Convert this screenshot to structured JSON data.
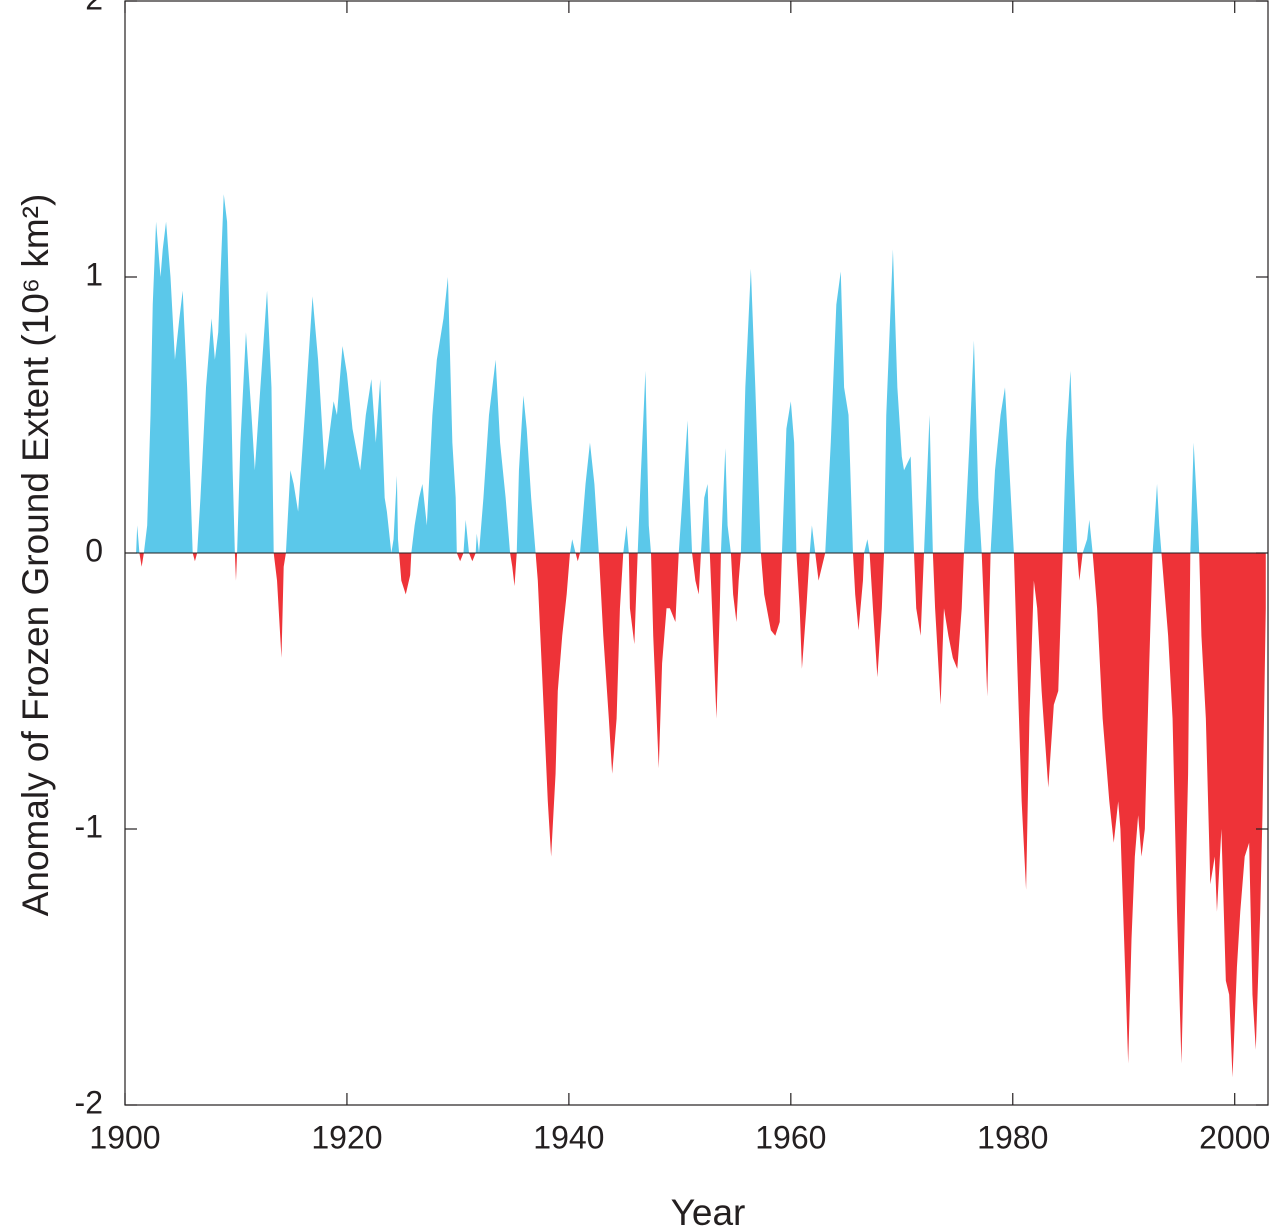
{
  "chart_data": {
    "type": "area",
    "x_label": "Year",
    "y_label": "Anomaly of Frozen Ground Extent (10⁶ km²)",
    "colors": {
      "positive": "#5bc8ea",
      "negative": "#ee3338"
    },
    "xlim": [
      1900,
      2003
    ],
    "xticks": [
      1900,
      1920,
      1940,
      1960,
      1980,
      2000
    ],
    "ylim": [
      -2,
      2
    ],
    "yticks": [
      -2,
      -1,
      0,
      1,
      2
    ],
    "x": [
      1901.0,
      1901.1,
      1901.3,
      1901.5,
      1901.7,
      1902.0,
      1902.3,
      1902.5,
      1902.8,
      1903.2,
      1903.4,
      1903.7,
      1904.1,
      1904.5,
      1904.9,
      1905.2,
      1905.6,
      1906.1,
      1906.3,
      1906.5,
      1906.8,
      1907.3,
      1907.8,
      1908.1,
      1908.4,
      1908.7,
      1908.9,
      1909.2,
      1909.5,
      1909.7,
      1909.9,
      1910.0,
      1910.1,
      1910.4,
      1910.9,
      1911.4,
      1911.7,
      1912.2,
      1912.8,
      1913.2,
      1913.4,
      1913.7,
      1914.1,
      1914.3,
      1914.5,
      1914.9,
      1915.2,
      1915.6,
      1916.2,
      1916.9,
      1917.4,
      1918.0,
      1918.8,
      1919.1,
      1919.6,
      1920.0,
      1920.5,
      1921.2,
      1921.7,
      1922.2,
      1922.6,
      1923.0,
      1923.4,
      1923.6,
      1924.0,
      1924.2,
      1924.5,
      1924.6,
      1924.7,
      1924.9,
      1925.3,
      1925.7,
      1925.8,
      1926.1,
      1926.5,
      1926.8,
      1927.2,
      1927.7,
      1928.1,
      1928.7,
      1929.1,
      1929.5,
      1929.8,
      1929.9,
      1930.2,
      1930.5,
      1930.7,
      1931.0,
      1931.3,
      1931.6,
      1931.7,
      1931.9,
      1932.3,
      1932.8,
      1933.4,
      1933.8,
      1934.3,
      1934.7,
      1934.9,
      1935.1,
      1935.3,
      1935.5,
      1935.9,
      1936.2,
      1936.6,
      1937.0,
      1937.2,
      1937.6,
      1938.1,
      1938.4,
      1938.8,
      1939.0,
      1939.4,
      1939.8,
      1940.1,
      1940.3,
      1940.6,
      1940.8,
      1941.0,
      1941.5,
      1941.9,
      1942.3,
      1942.7,
      1943.1,
      1943.6,
      1943.9,
      1944.3,
      1944.6,
      1944.9,
      1945.2,
      1945.4,
      1945.5,
      1945.9,
      1946.2,
      1946.5,
      1946.9,
      1947.2,
      1947.4,
      1947.6,
      1948.1,
      1948.4,
      1948.8,
      1949.1,
      1949.6,
      1949.9,
      1950.4,
      1950.7,
      1950.9,
      1951.1,
      1951.4,
      1951.7,
      1951.9,
      1952.2,
      1952.5,
      1952.7,
      1952.9,
      1953.3,
      1953.6,
      1953.7,
      1953.9,
      1954.1,
      1954.3,
      1954.6,
      1954.8,
      1955.1,
      1955.3,
      1955.5,
      1955.9,
      1956.4,
      1956.8,
      1957.3,
      1957.6,
      1958.2,
      1958.6,
      1959.0,
      1959.2,
      1959.6,
      1960.0,
      1960.3,
      1960.5,
      1960.8,
      1961.0,
      1961.4,
      1961.7,
      1961.9,
      1962.2,
      1962.5,
      1962.8,
      1963.1,
      1963.6,
      1964.1,
      1964.5,
      1964.8,
      1965.2,
      1965.6,
      1965.8,
      1966.1,
      1966.5,
      1966.6,
      1966.9,
      1967.1,
      1967.4,
      1967.8,
      1968.2,
      1968.4,
      1968.6,
      1969.2,
      1969.6,
      1970.0,
      1970.2,
      1970.8,
      1971.1,
      1971.3,
      1971.7,
      1972.0,
      1972.3,
      1972.5,
      1972.8,
      1973.0,
      1973.5,
      1973.8,
      1974.2,
      1974.6,
      1975.0,
      1975.4,
      1975.6,
      1976.1,
      1976.5,
      1976.7,
      1976.9,
      1977.2,
      1977.5,
      1977.7,
      1978.0,
      1978.4,
      1978.9,
      1979.3,
      1979.7,
      1980.1,
      1980.4,
      1980.8,
      1981.2,
      1981.5,
      1981.9,
      1982.2,
      1982.6,
      1983.2,
      1983.7,
      1984.1,
      1984.5,
      1984.8,
      1985.2,
      1985.5,
      1985.8,
      1986.0,
      1986.3,
      1986.7,
      1986.9,
      1987.2,
      1987.6,
      1988.1,
      1988.7,
      1989.1,
      1989.5,
      1989.7,
      1990.2,
      1990.4,
      1990.7,
      1991.0,
      1991.3,
      1991.6,
      1991.9,
      1992.3,
      1992.6,
      1993.0,
      1993.2,
      1993.4,
      1993.7,
      1994.0,
      1994.4,
      1994.8,
      1995.2,
      1995.4,
      1995.8,
      1996.0,
      1996.3,
      1996.7,
      1996.8,
      1997.0,
      1997.4,
      1997.8,
      1998.2,
      1998.4,
      1998.8,
      1999.2,
      1999.5,
      1999.8,
      2000.2,
      2000.5,
      2000.9,
      2001.3,
      2001.6,
      2001.9,
      2002.3,
      2002.5,
      2002.8
    ],
    "values": [
      0,
      0.1,
      0,
      -0.05,
      0,
      0.1,
      0.5,
      0.9,
      1.2,
      1.0,
      1.1,
      1.2,
      1.0,
      0.7,
      0.85,
      0.95,
      0.6,
      0,
      -0.03,
      0,
      0.2,
      0.6,
      0.85,
      0.7,
      0.8,
      1.1,
      1.3,
      1.2,
      0.7,
      0.3,
      0,
      -0.1,
      0,
      0.4,
      0.8,
      0.5,
      0.3,
      0.6,
      0.95,
      0.6,
      0,
      -0.1,
      -0.38,
      -0.05,
      0,
      0.3,
      0.25,
      0.15,
      0.5,
      0.93,
      0.7,
      0.3,
      0.55,
      0.5,
      0.75,
      0.65,
      0.45,
      0.3,
      0.5,
      0.63,
      0.4,
      0.63,
      0.2,
      0.15,
      0,
      0.05,
      0.28,
      0.05,
      0,
      -0.1,
      -0.15,
      -0.08,
      0,
      0.1,
      0.2,
      0.25,
      0.1,
      0.5,
      0.7,
      0.85,
      1.0,
      0.4,
      0.2,
      0,
      -0.03,
      0,
      0.12,
      0,
      -0.03,
      0,
      0.07,
      0,
      0.2,
      0.5,
      0.7,
      0.4,
      0.2,
      0,
      -0.05,
      -0.12,
      0,
      0.3,
      0.57,
      0.45,
      0.2,
      0,
      -0.1,
      -0.45,
      -0.9,
      -1.1,
      -0.8,
      -0.5,
      -0.3,
      -0.15,
      0,
      0.05,
      0,
      -0.03,
      0,
      0.25,
      0.4,
      0.25,
      0,
      -0.3,
      -0.6,
      -0.8,
      -0.6,
      -0.2,
      0,
      0.1,
      0,
      -0.2,
      -0.33,
      0,
      0.3,
      0.66,
      0.1,
      0,
      -0.3,
      -0.78,
      -0.4,
      -0.2,
      -0.2,
      -0.25,
      0,
      0.3,
      0.48,
      0.2,
      0,
      -0.1,
      -0.15,
      0,
      0.2,
      0.25,
      0,
      -0.2,
      -0.6,
      -0.2,
      0,
      0.2,
      0.38,
      0.1,
      0,
      -0.15,
      -0.25,
      -0.1,
      0,
      0.6,
      1.03,
      0.6,
      0,
      -0.15,
      -0.28,
      -0.3,
      -0.25,
      0,
      0.45,
      0.55,
      0.4,
      0,
      -0.2,
      -0.42,
      -0.2,
      0,
      0.1,
      0,
      -0.1,
      -0.05,
      0,
      0.4,
      0.9,
      1.02,
      0.6,
      0.5,
      0,
      -0.15,
      -0.28,
      -0.1,
      0,
      0.05,
      0,
      -0.2,
      -0.45,
      -0.2,
      0,
      0.5,
      1.1,
      0.6,
      0.35,
      0.3,
      0.35,
      0,
      -0.2,
      -0.3,
      0,
      0.3,
      0.5,
      0,
      -0.2,
      -0.55,
      -0.2,
      -0.3,
      -0.38,
      -0.42,
      -0.2,
      0,
      0.4,
      0.77,
      0.5,
      0.2,
      0,
      -0.3,
      -0.52,
      0,
      0.3,
      0.5,
      0.6,
      0.3,
      0,
      -0.4,
      -0.9,
      -1.22,
      -0.6,
      -0.1,
      -0.2,
      -0.5,
      -0.85,
      -0.55,
      -0.5,
      0,
      0.4,
      0.66,
      0.3,
      0,
      -0.1,
      0,
      0.05,
      0.12,
      0,
      -0.2,
      -0.6,
      -0.9,
      -1.05,
      -0.9,
      -1.0,
      -1.6,
      -1.85,
      -1.4,
      -1.1,
      -0.95,
      -1.1,
      -1.0,
      -0.4,
      0,
      0.25,
      0.1,
      0,
      -0.15,
      -0.3,
      -0.6,
      -1.3,
      -1.85,
      -1.5,
      -0.8,
      0,
      0.4,
      0.1,
      0,
      -0.3,
      -0.6,
      -1.2,
      -1.1,
      -1.3,
      -1.0,
      -1.55,
      -1.6,
      -1.9,
      -1.5,
      -1.3,
      -1.1,
      -1.05,
      -1.6,
      -1.8,
      -1.3,
      -0.95,
      -0.2
    ]
  }
}
